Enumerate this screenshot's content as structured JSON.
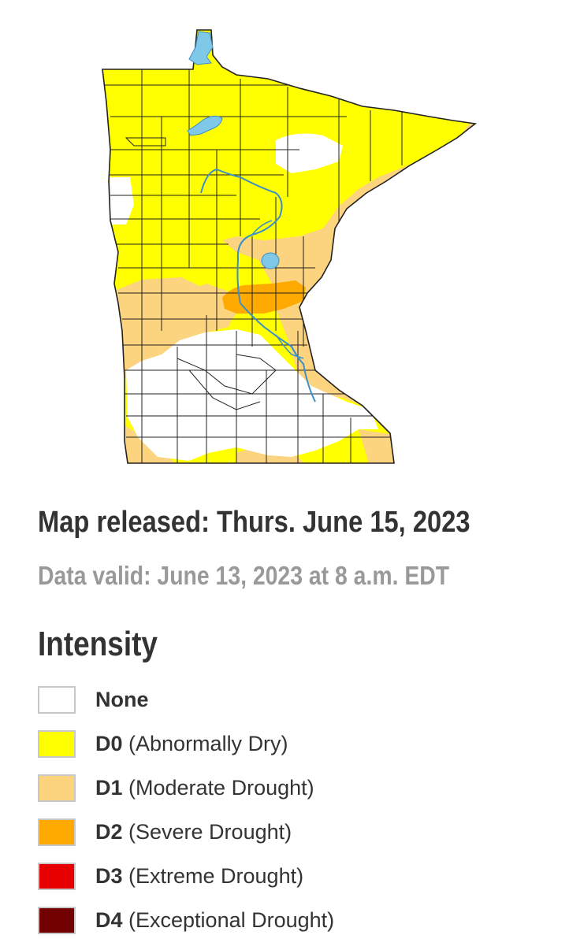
{
  "map": {
    "colors": {
      "none": "#ffffff",
      "d0": "#ffff00",
      "d1": "#fcd37f",
      "d2": "#ffaa00",
      "border": "#222222",
      "water": "#7fc8e8",
      "river": "#3a8fc8"
    }
  },
  "info": {
    "released": "Map released: Thurs. June 15, 2023",
    "valid": "Data valid: June 13, 2023 at 8 a.m. EDT"
  },
  "legend": {
    "title": "Intensity",
    "items": [
      {
        "code": "None",
        "description": "",
        "color": "#ffffff"
      },
      {
        "code": "D0",
        "description": " (Abnormally Dry)",
        "color": "#ffff00"
      },
      {
        "code": "D1",
        "description": " (Moderate Drought)",
        "color": "#fcd37f"
      },
      {
        "code": "D2",
        "description": " (Severe Drought)",
        "color": "#ffaa00"
      },
      {
        "code": "D3",
        "description": " (Extreme Drought)",
        "color": "#e60000"
      },
      {
        "code": "D4",
        "description": " (Exceptional Drought)",
        "color": "#730000"
      }
    ]
  }
}
